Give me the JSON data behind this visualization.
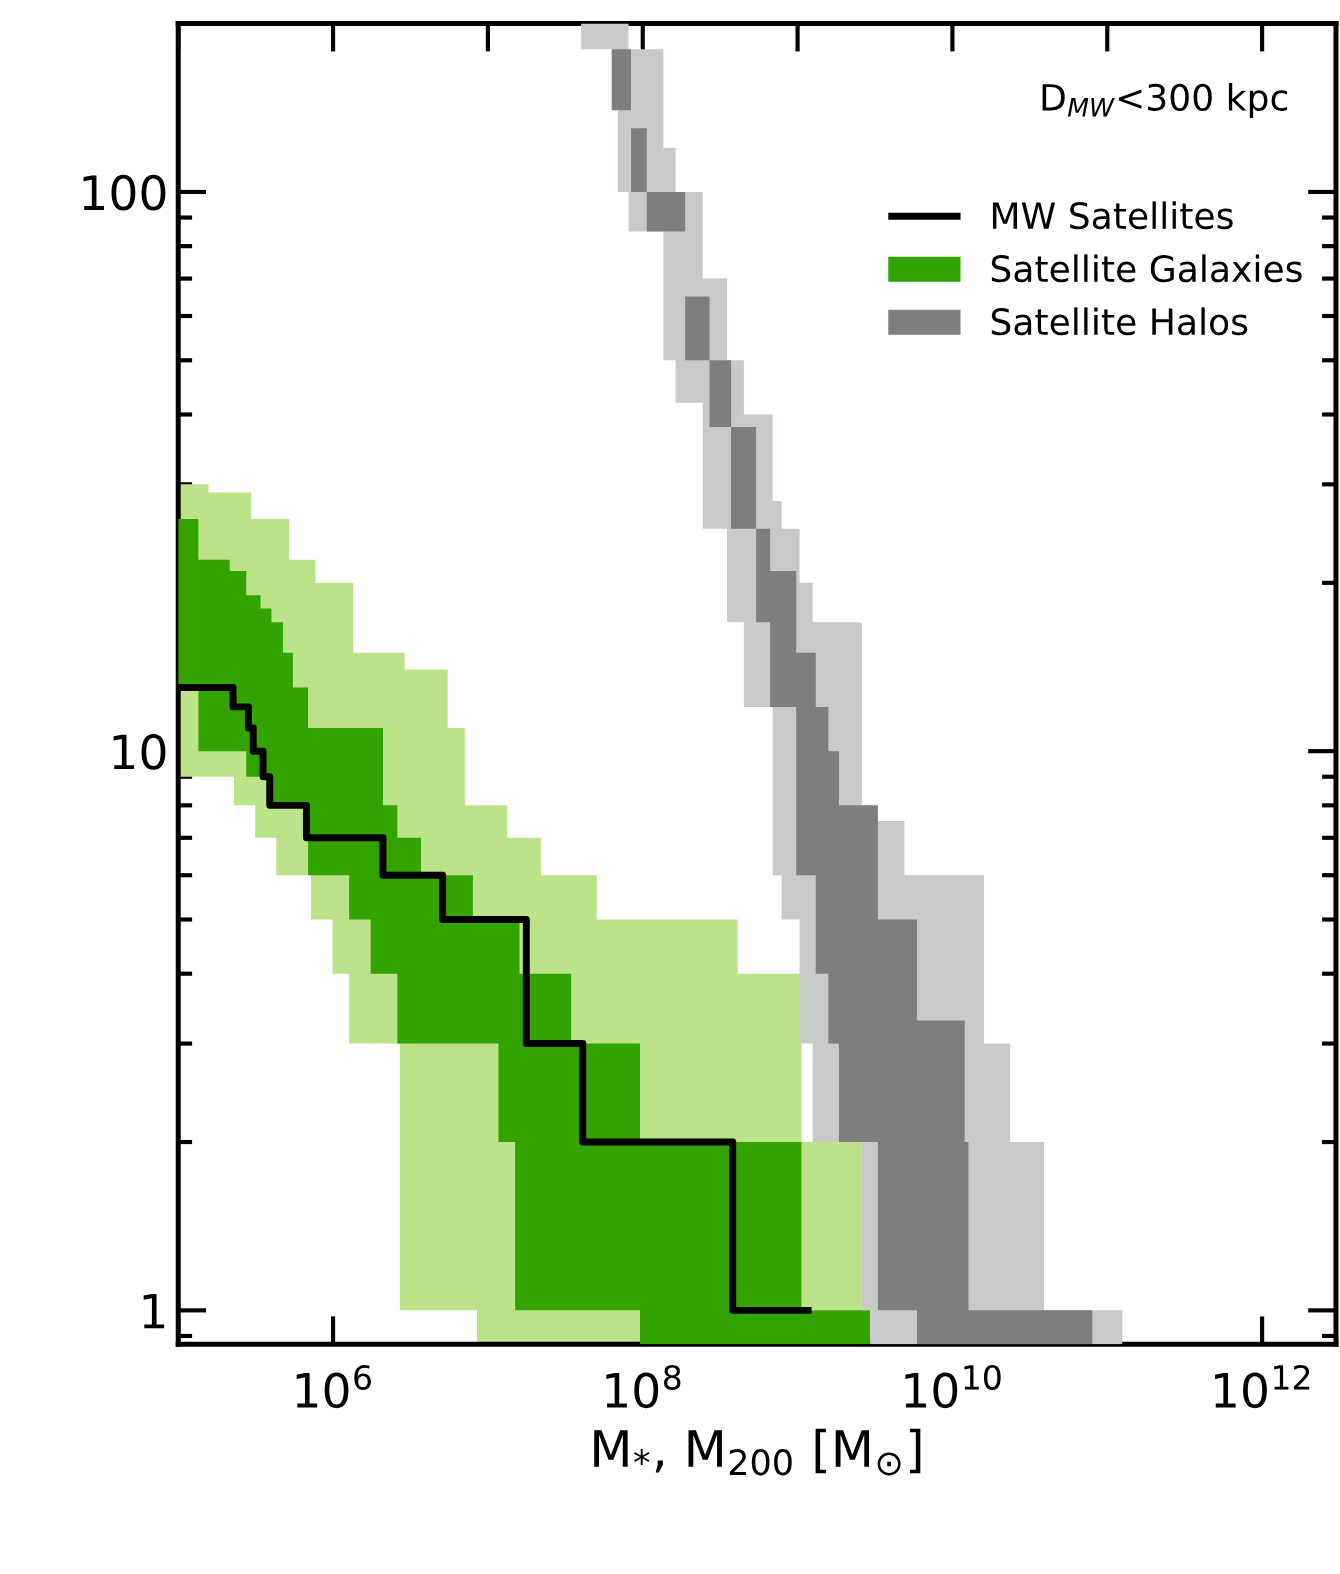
{
  "chart_data": {
    "type": "step",
    "xlabel": "M$_{*}$, M$_{200}$ [M$_{⊙}$]",
    "annotations": [
      "D$_{MW}$<300 kpc"
    ],
    "log": "xy",
    "xlim": [
      100000.0,
      3000000000000.0
    ],
    "ylim": [
      0.87,
      200
    ],
    "xticks": [
      {
        "value": 100000.0,
        "label": null
      },
      {
        "value": 1000000.0,
        "label": "10$^{6}$"
      },
      {
        "value": 10000000.0,
        "label": null
      },
      {
        "value": 100000000.0,
        "label": "10$^{8}$"
      },
      {
        "value": 1000000000.0,
        "label": null
      },
      {
        "value": 10000000000.0,
        "label": "10$^{10}$"
      },
      {
        "value": 100000000000.0,
        "label": null
      },
      {
        "value": 1000000000000.0,
        "label": "10$^{12}$"
      }
    ],
    "yticks": [
      1,
      10,
      100
    ],
    "grid": false,
    "legend": "top right",
    "series": [
      {
        "name": "MW Satellites",
        "color": "#000000",
        "x": [
          102000.0,
          226000.0,
          284000.0,
          305000.0,
          353000.0,
          390000.0,
          673000.0,
          2100000.0,
          5100000.0,
          17700000.0,
          41000000.0,
          381000000.0,
          1170000000.0
        ],
        "values": [
          13,
          12,
          11,
          10,
          9,
          8,
          7,
          6,
          5,
          3,
          2,
          1,
          1
        ]
      },
      {
        "color": "#bde38a",
        "x": [
          100000.0,
          157000.0,
          229000.0,
          295000.0,
          314000.0,
          430000.0,
          520000.0,
          720000.0,
          770000.0,
          990000.0,
          1270000.0,
          1350000.0,
          2700000.0,
          2900000.0,
          5500000.0,
          7100000.0,
          8500000.0,
          13300000.0,
          22000000.0,
          50500000.0,
          410000000.0,
          1060000000.0,
          2600000000.0,
          2940000000.0
        ],
        "values": [
          null,
          null,
          null,
          null,
          null,
          null,
          null,
          null,
          null,
          null,
          null,
          null,
          null,
          null,
          null,
          null,
          null,
          null,
          null,
          null,
          null,
          null,
          null,
          null
        ],
        "lower": [
          9,
          9,
          8,
          8,
          7,
          6,
          6,
          5,
          5,
          4,
          3,
          3,
          1,
          1,
          1,
          1,
          0.87,
          0.87,
          0.87,
          0.87,
          0.87,
          0.87,
          0.87,
          0.87
        ],
        "upper": [
          30,
          29,
          29,
          26,
          26,
          26,
          22,
          22,
          20,
          20,
          20,
          15,
          15,
          14,
          11,
          8,
          8,
          7,
          6,
          5,
          4,
          2,
          1,
          1
        ]
      },
      {
        "name": "Satellite Galaxies",
        "color": "#33a300",
        "x": [
          100000.0,
          135000.0,
          215000.0,
          275000.0,
          340000.0,
          400000.0,
          475000.0,
          550000.0,
          690000.0,
          1270000.0,
          1750000.0,
          2100000.0,
          2600000.0,
          3700000.0,
          8000000.0,
          11700000.0,
          15000000.0,
          16000000.0,
          34500000.0,
          96000000.0,
          1060000000.0,
          2940000000.0
        ],
        "values": [
          null,
          null,
          null,
          null,
          null,
          null,
          null,
          null,
          null,
          null,
          null,
          null,
          null,
          null,
          null,
          null,
          null,
          null,
          null,
          null,
          null,
          null
        ],
        "lower": [
          13,
          10,
          10,
          9,
          9,
          8,
          8,
          8,
          6,
          5,
          4,
          4,
          3,
          3,
          3,
          2,
          1,
          1,
          1,
          0.87,
          0.87,
          0.87
        ],
        "upper": [
          26,
          22,
          21,
          19,
          18,
          17,
          15,
          13,
          11,
          11,
          11,
          8,
          7,
          6,
          5,
          5,
          5,
          4,
          3,
          2,
          1,
          1
        ]
      },
      {
        "color": "#c8cac8",
        "x": [
          36000000.0,
          40000000.0,
          69000000.0,
          81000000.0,
          136000000.0,
          163000000.0,
          244000000.0,
          350000000.0,
          450000000.0,
          690000000.0,
          790000000.0,
          1030000000.0,
          1250000000.0,
          2600000000.0,
          2940000000.0,
          4900000000.0,
          16000000000.0,
          23600000000.0,
          39000000000.0,
          125000000000.0
        ],
        "values": [
          null,
          null,
          null,
          null,
          null,
          null,
          null,
          null,
          null,
          null,
          null,
          null,
          null,
          null,
          null,
          null,
          null,
          null,
          null,
          null
        ],
        "lower": [
          200,
          180,
          100,
          85,
          50,
          42,
          25,
          17,
          12,
          6,
          5,
          3,
          2,
          1,
          0.87,
          0.87,
          0.87,
          0.87,
          0.87,
          0.87
        ],
        "upper": [
          200,
          200,
          200,
          180,
          120,
          100,
          70,
          50,
          40,
          28,
          25,
          20,
          17,
          8,
          7.5,
          6,
          3,
          2,
          1,
          1
        ]
      },
      {
        "name": "Satellite Halos",
        "color": "#7d7f7d",
        "x": [
          41000000.0,
          63000000.0,
          84000000.0,
          106000000.0,
          188000000.0,
          270000000.0,
          372000000.0,
          540000000.0,
          665000000.0,
          980000000.0,
          1310000000.0,
          1580000000.0,
          1850000000.0,
          3300000000.0,
          5900000000.0,
          12000000000.0,
          12700000000.0,
          80000000000.0
        ],
        "values": [
          null,
          null,
          null,
          null,
          null,
          null,
          null,
          null,
          null,
          null,
          null,
          null,
          null,
          null,
          null,
          null,
          null,
          null
        ],
        "lower": [
          200,
          140,
          100,
          85,
          50,
          38,
          25,
          17,
          12,
          6,
          4,
          3,
          2,
          1,
          0.87,
          0.87,
          0.87,
          0.87
        ],
        "upper": [
          200,
          180,
          130,
          100,
          65,
          50,
          38,
          25,
          21,
          15,
          12,
          10,
          8,
          5,
          3.3,
          2,
          1,
          1
        ]
      }
    ]
  }
}
